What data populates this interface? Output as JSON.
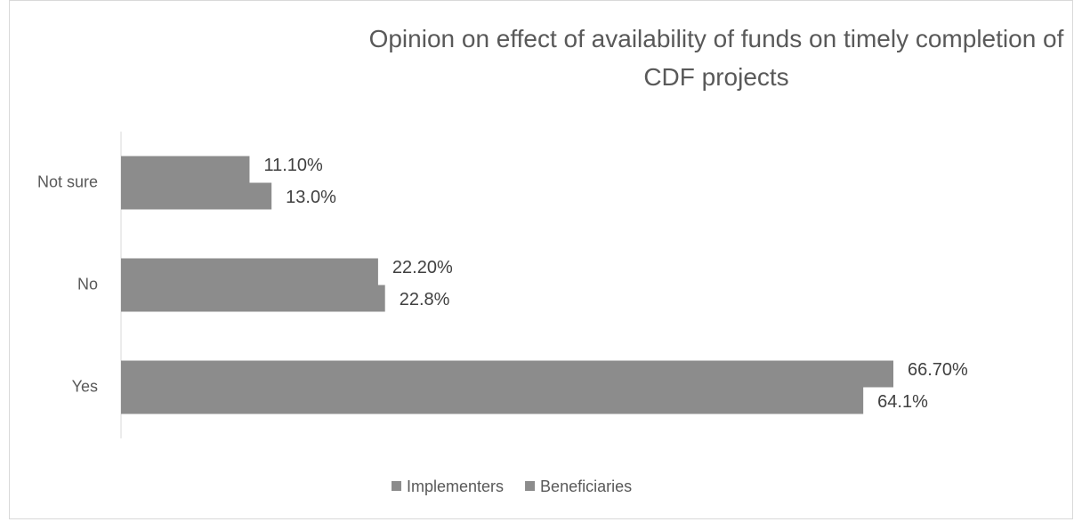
{
  "chart_data": {
    "type": "bar",
    "orientation": "horizontal",
    "title": "Opinion on effect of availability of funds on timely completion of CDF projects",
    "categories": [
      "Not sure",
      "No",
      "Yes"
    ],
    "series": [
      {
        "name": "Implementers",
        "color": "#8c8c8c",
        "values": [
          11.1,
          22.2,
          66.7
        ],
        "value_labels": [
          "11.10%",
          "22.20%",
          "66.70%"
        ]
      },
      {
        "name": "Beneficiaries",
        "color": "#8c8c8c",
        "values": [
          13.0,
          22.8,
          64.1
        ],
        "value_labels": [
          "13.0%",
          "22.8%",
          "64.1%"
        ]
      }
    ],
    "legend": "bottom"
  }
}
